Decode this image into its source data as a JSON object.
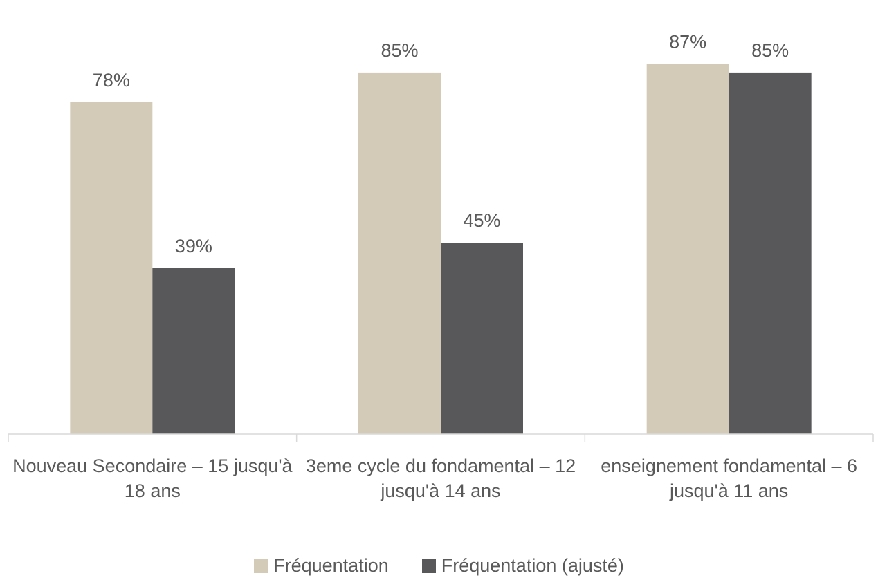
{
  "chart_data": {
    "type": "bar",
    "categories": [
      "Nouveau Secondaire – 15 jusqu'à 18 ans",
      "3eme cycle du fondamental – 12 jusqu'à 14 ans",
      "enseignement fondamental – 6 jusqu'à 11 ans"
    ],
    "series": [
      {
        "name": "Fréquentation",
        "color": "#d3cbb8",
        "values": [
          78,
          85,
          87
        ],
        "value_labels": [
          "78%",
          "85%",
          "87%"
        ]
      },
      {
        "name": "Fréquentation (ajusté)",
        "color": "#58585a",
        "values": [
          39,
          45,
          85
        ],
        "value_labels": [
          "39%",
          "45%",
          "85%"
        ]
      }
    ],
    "ylim": [
      0,
      100
    ]
  }
}
